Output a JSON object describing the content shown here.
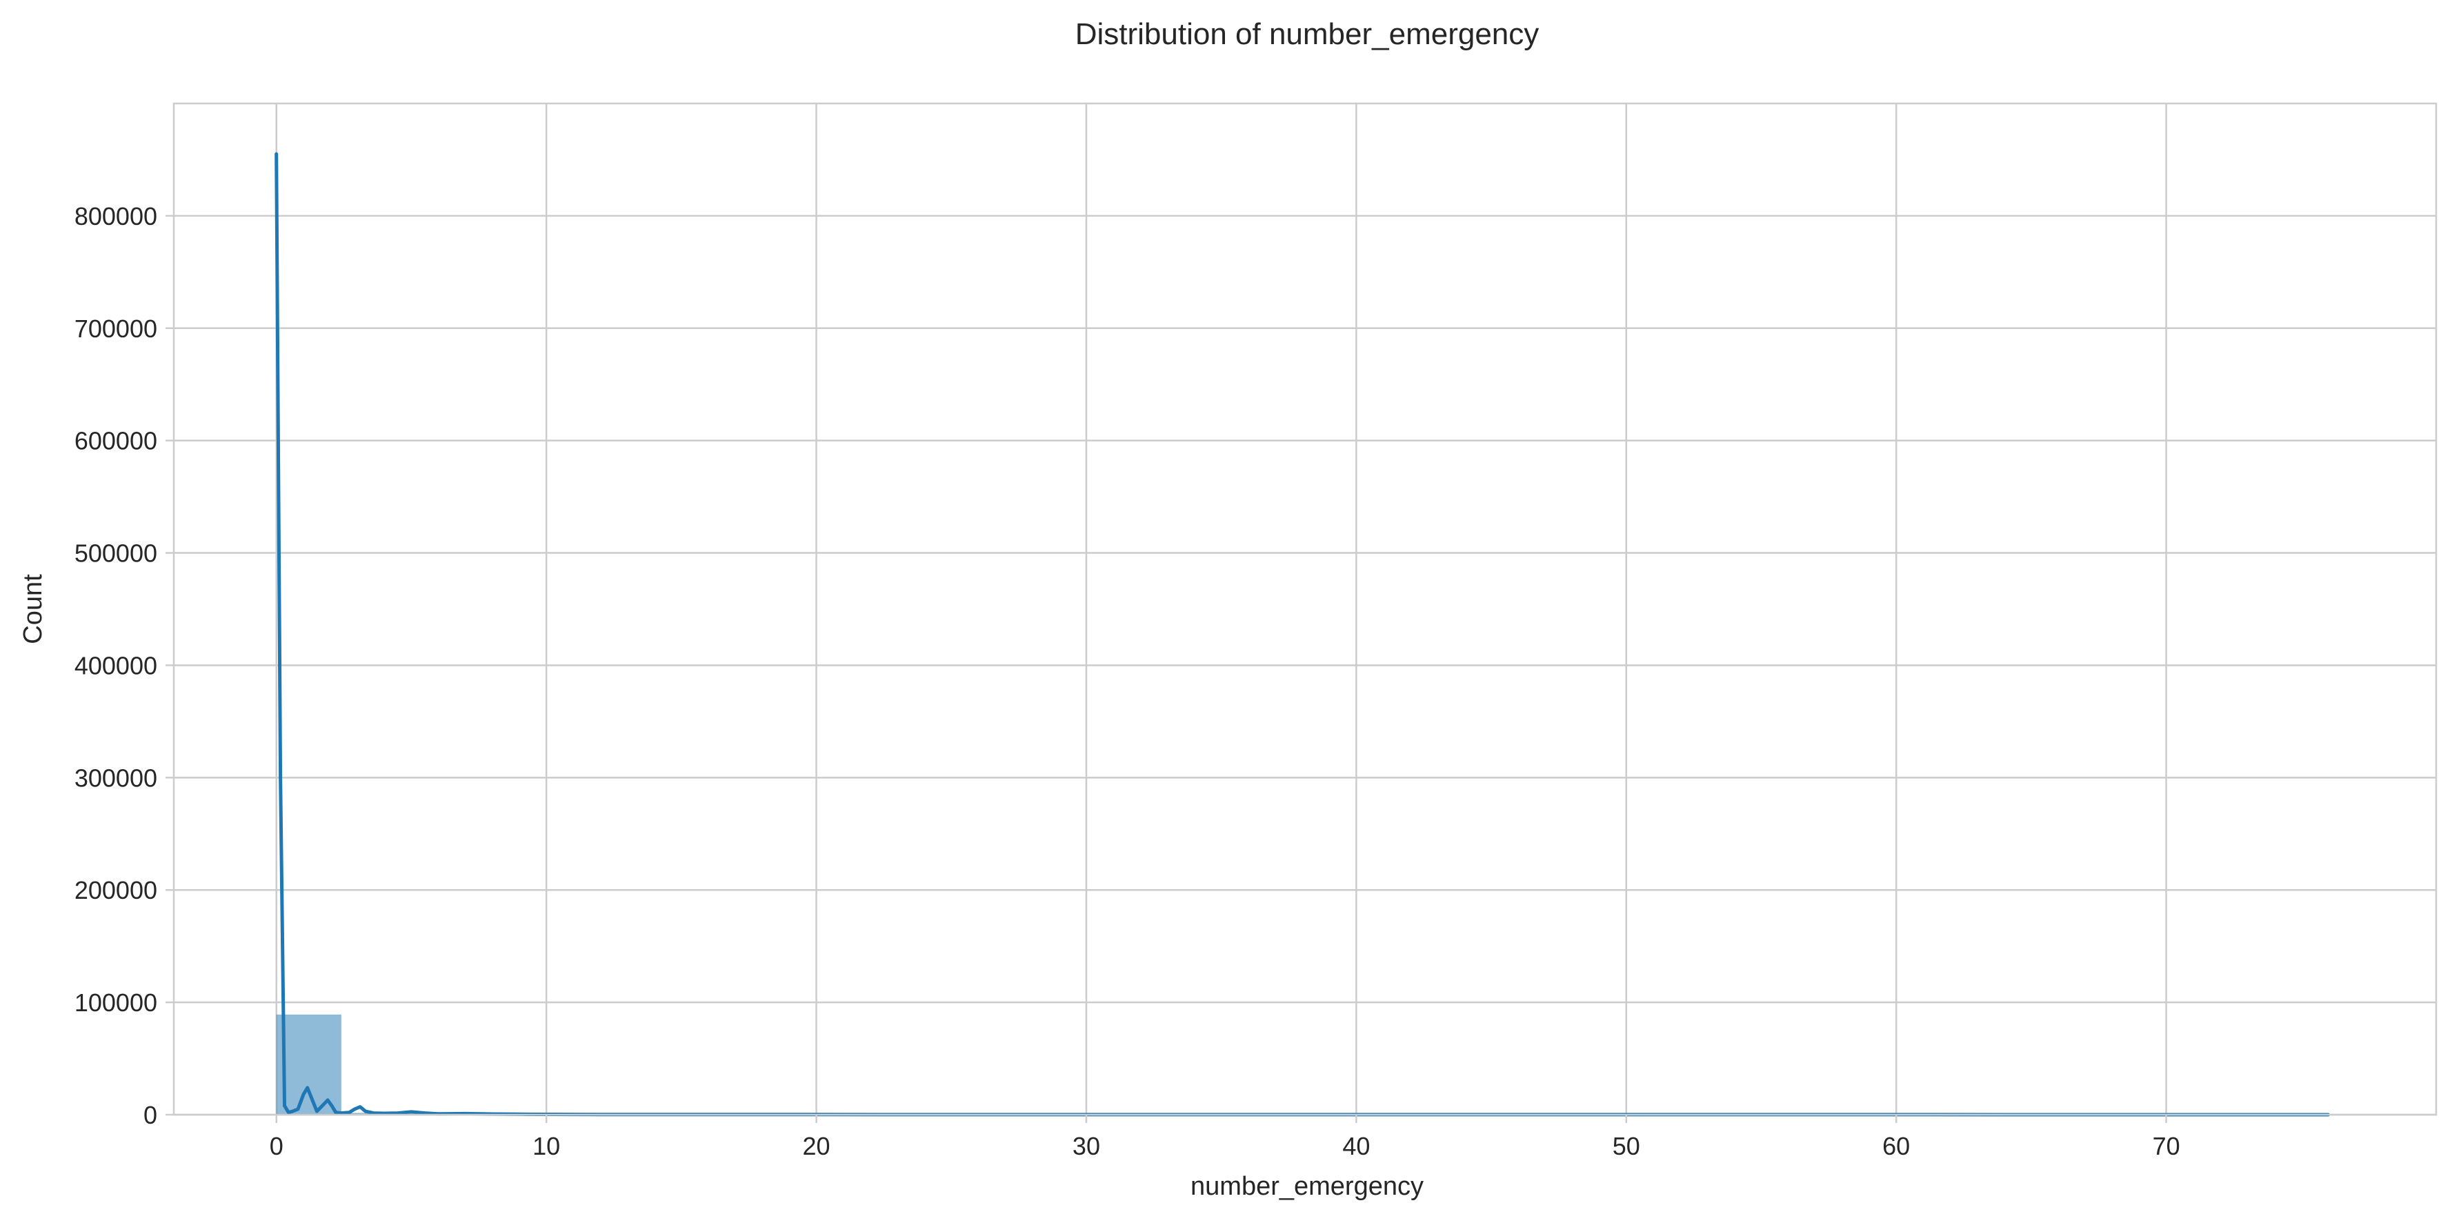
{
  "chart_data": {
    "type": "bar",
    "title": "Distribution of number_emergency",
    "xlabel": "number_emergency",
    "ylabel": "Count",
    "xlim": [
      -3.8,
      80.0
    ],
    "ylim": [
      0,
      900000
    ],
    "xticks": [
      0,
      10,
      20,
      30,
      40,
      50,
      60,
      70
    ],
    "yticks": [
      0,
      100000,
      200000,
      300000,
      400000,
      500000,
      600000,
      700000,
      800000
    ],
    "grid": true,
    "legend": "none",
    "bar_color": "#1f77b4",
    "bar_opacity": 0.5,
    "line_color": "#1f77b4",
    "histogram": {
      "bin_edges": [
        0,
        2.4,
        4.8,
        7.2,
        9.6,
        12.0,
        14.4,
        16.8,
        19.2,
        21.6,
        24.0,
        26.4,
        28.8,
        31.2,
        33.6,
        36.0,
        38.4,
        40.8,
        43.2,
        45.6,
        48.0,
        50.4,
        52.8,
        55.2,
        57.6,
        60.0,
        62.4,
        64.8,
        67.2,
        69.6,
        72.0,
        74.4,
        76.0
      ],
      "counts": [
        89000,
        1500,
        300,
        100,
        40,
        20,
        10,
        5,
        5,
        3,
        3,
        2,
        2,
        1,
        1,
        1,
        1,
        1,
        1,
        1,
        1,
        1,
        1,
        1,
        1,
        1,
        1,
        1,
        1,
        1,
        1,
        1
      ]
    },
    "kde_line": {
      "x": [
        0,
        0.15,
        0.3,
        0.45,
        0.6,
        0.8,
        1.0,
        1.15,
        1.3,
        1.5,
        1.7,
        1.9,
        2.05,
        2.2,
        2.4,
        2.7,
        2.9,
        3.1,
        3.3,
        3.6,
        4.0,
        4.5,
        5.0,
        5.5,
        6.0,
        7.0,
        8.0,
        9.0,
        10.0,
        12.0,
        15.0,
        20.0,
        30.0,
        40.0,
        50.0,
        60.0,
        70.0,
        76.0
      ],
      "y": [
        855000,
        300000,
        8000,
        2000,
        3000,
        5000,
        18000,
        24000,
        15000,
        3000,
        8000,
        13000,
        8000,
        2000,
        1500,
        2000,
        5000,
        7000,
        3000,
        1500,
        1200,
        1500,
        2500,
        1500,
        800,
        1000,
        600,
        400,
        300,
        200,
        150,
        100,
        80,
        60,
        50,
        40,
        30,
        20
      ]
    }
  }
}
